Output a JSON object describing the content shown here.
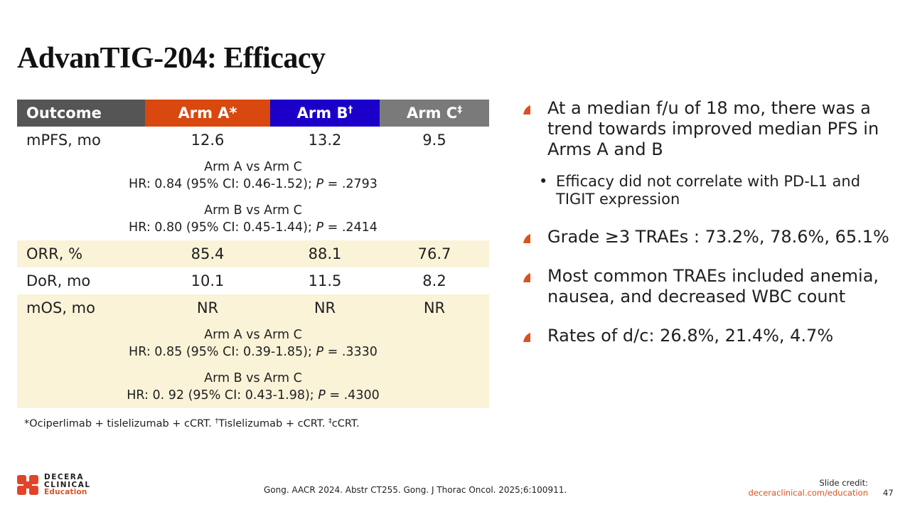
{
  "title": "AdvanTIG-204: Efficacy",
  "colors": {
    "accent": "#d9531e",
    "arm_a": "#d9480f",
    "arm_b": "#1a00c9",
    "arm_c": "#7a7a7a",
    "outcome": "#555555",
    "shade": "#faf3d8"
  },
  "table": {
    "headers": {
      "outcome": "Outcome",
      "arm_a": "Arm A",
      "arm_a_mark": "*",
      "arm_b": "Arm B",
      "arm_b_mark": "†",
      "arm_c": "Arm C",
      "arm_c_mark": "‡"
    },
    "rows": {
      "mpfs": {
        "label": "mPFS, mo",
        "a": "12.6",
        "b": "13.2",
        "c": "9.5"
      },
      "pfs_ac": {
        "line1": "Arm A vs Arm C",
        "hr": "HR: 0.84 (95% CI: 0.46-1.52); ",
        "p_label": "P",
        "p_value": " = .2793"
      },
      "pfs_bc": {
        "line1": "Arm B vs Arm C",
        "hr": "HR: 0.80 (95% CI: 0.45-1.44); ",
        "p_label": "P",
        "p_value": " = .2414"
      },
      "orr": {
        "label": "ORR, %",
        "a": "85.4",
        "b": "88.1",
        "c": "76.7"
      },
      "dor": {
        "label": "DoR, mo",
        "a": "10.1",
        "b": "11.5",
        "c": "8.2"
      },
      "mos": {
        "label": "mOS, mo",
        "a": "NR",
        "b": "NR",
        "c": "NR"
      },
      "os_ac": {
        "line1": "Arm A vs Arm C",
        "hr": "HR: 0.85 (95% CI: 0.39-1.85); ",
        "p_label": "P",
        "p_value": " = .3330"
      },
      "os_bc": {
        "line1": "Arm B vs Arm C",
        "hr": "HR: 0. 92 (95% CI: 0.43-1.98); ",
        "p_label": "P",
        "p_value": " = .4300"
      }
    }
  },
  "footnote": {
    "part1": "*Ociperlimab + tislelizumab + cCRT. ",
    "mark2": "†",
    "part2": "Tislelizumab + cCRT. ",
    "mark3": "‡",
    "part3": "cCRT."
  },
  "bullets": {
    "b1": "At a median f/u of 18 mo, there was a trend towards improved median PFS in Arms A and B",
    "b1_sub": "Efficacy did not correlate with PD-L1 and TIGIT expression",
    "b2": "Grade ≥3 TRAEs : 73.2%, 78.6%, 65.1%",
    "b3": "Most common TRAEs included anemia, nausea, and decreased WBC count",
    "b4": "Rates of d/c: 26.8%, 21.4%, 4.7%"
  },
  "logo": {
    "line1": "DECERA",
    "line2": "CLINICAL",
    "line3": "Education"
  },
  "reference": "Gong. AACR 2024. Abstr CT255. Gong. J Thorac Oncol. 2025;6:100911.",
  "credit": {
    "label": "Slide credit:",
    "url": "deceraclinical.com/education"
  },
  "page_number": "47"
}
